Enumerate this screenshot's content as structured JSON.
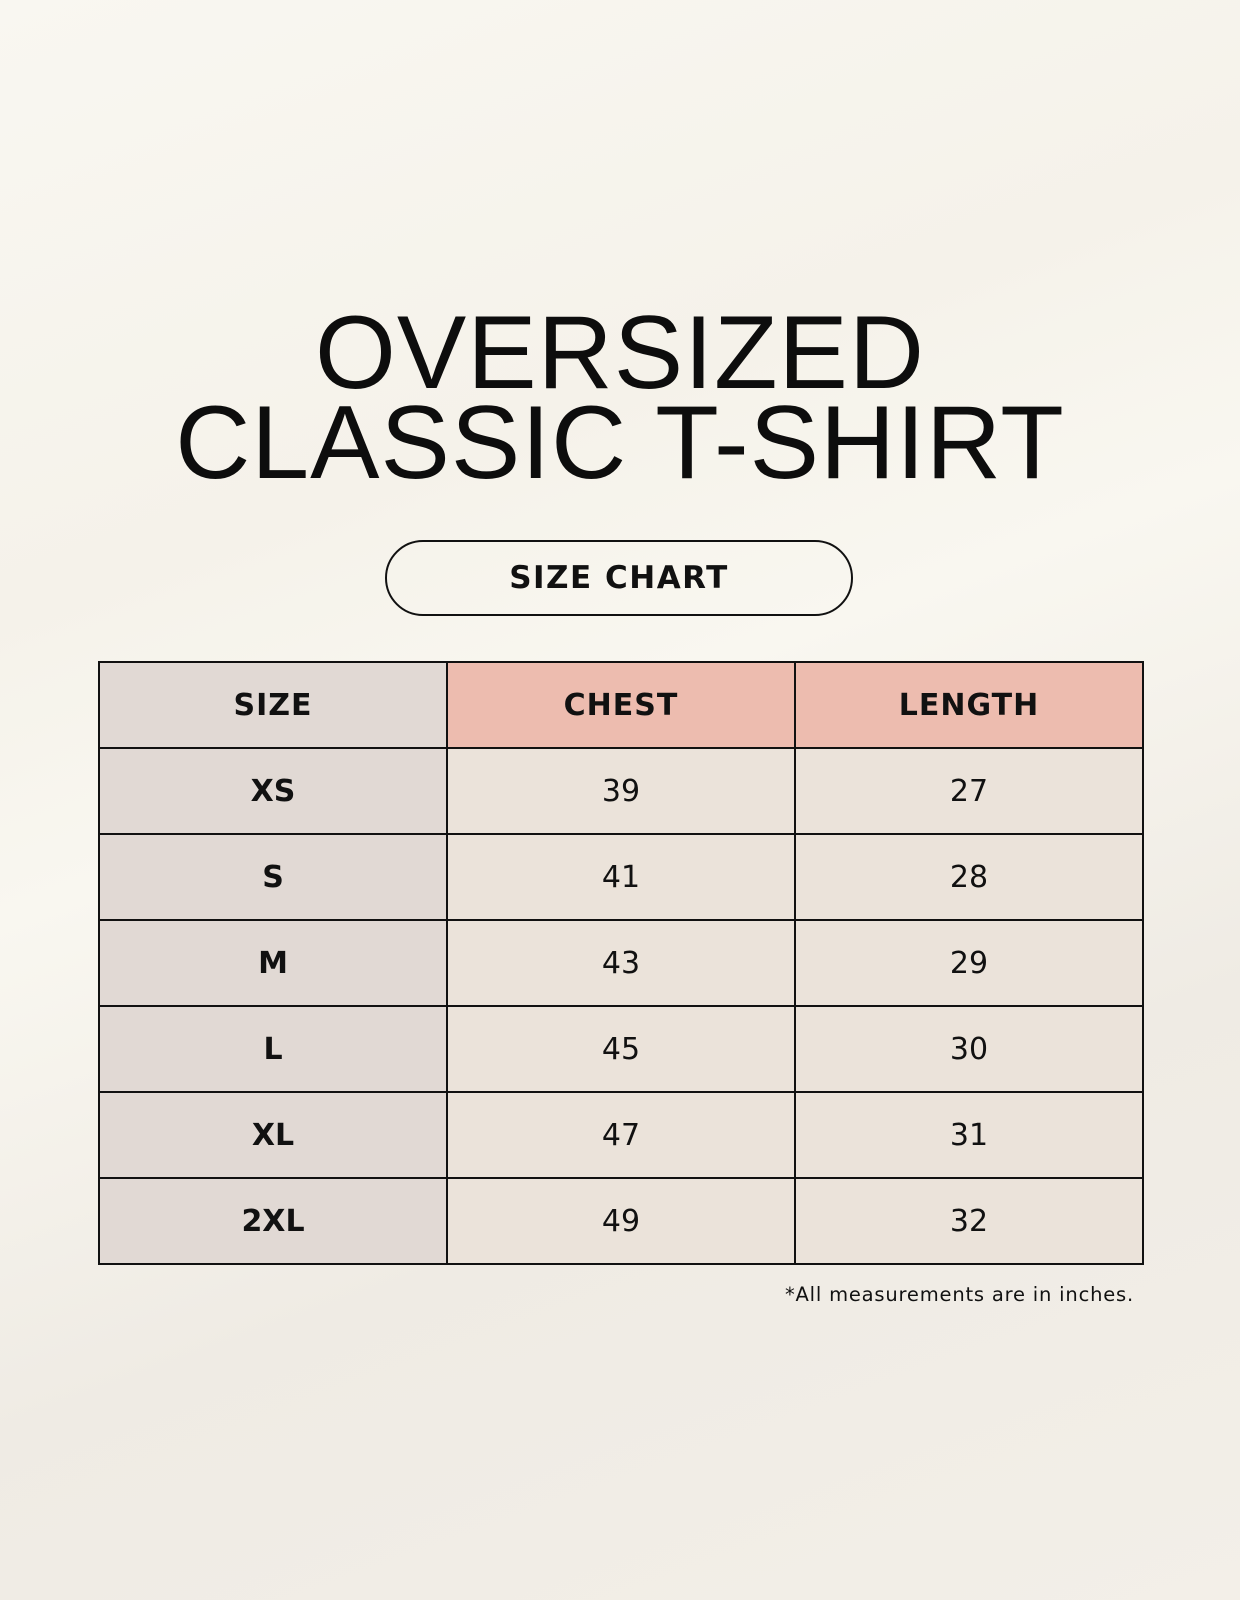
{
  "title": {
    "line1": "OVERSIZED",
    "line2": "CLASSIC T-SHIRT"
  },
  "badge": "SIZE CHART",
  "table": {
    "headers": [
      "SIZE",
      "CHEST",
      "LENGTH"
    ],
    "rows": [
      [
        "XS",
        "39",
        "27"
      ],
      [
        "S",
        "41",
        "28"
      ],
      [
        "M",
        "43",
        "29"
      ],
      [
        "L",
        "45",
        "30"
      ],
      [
        "XL",
        "47",
        "31"
      ],
      [
        "2XL",
        "49",
        "32"
      ]
    ]
  },
  "footnote": "*All measurements are in inches.",
  "colors": {
    "size_column": "#e1d9d4",
    "header_accent": "#edbcaf",
    "cell": "#ebe3da"
  }
}
